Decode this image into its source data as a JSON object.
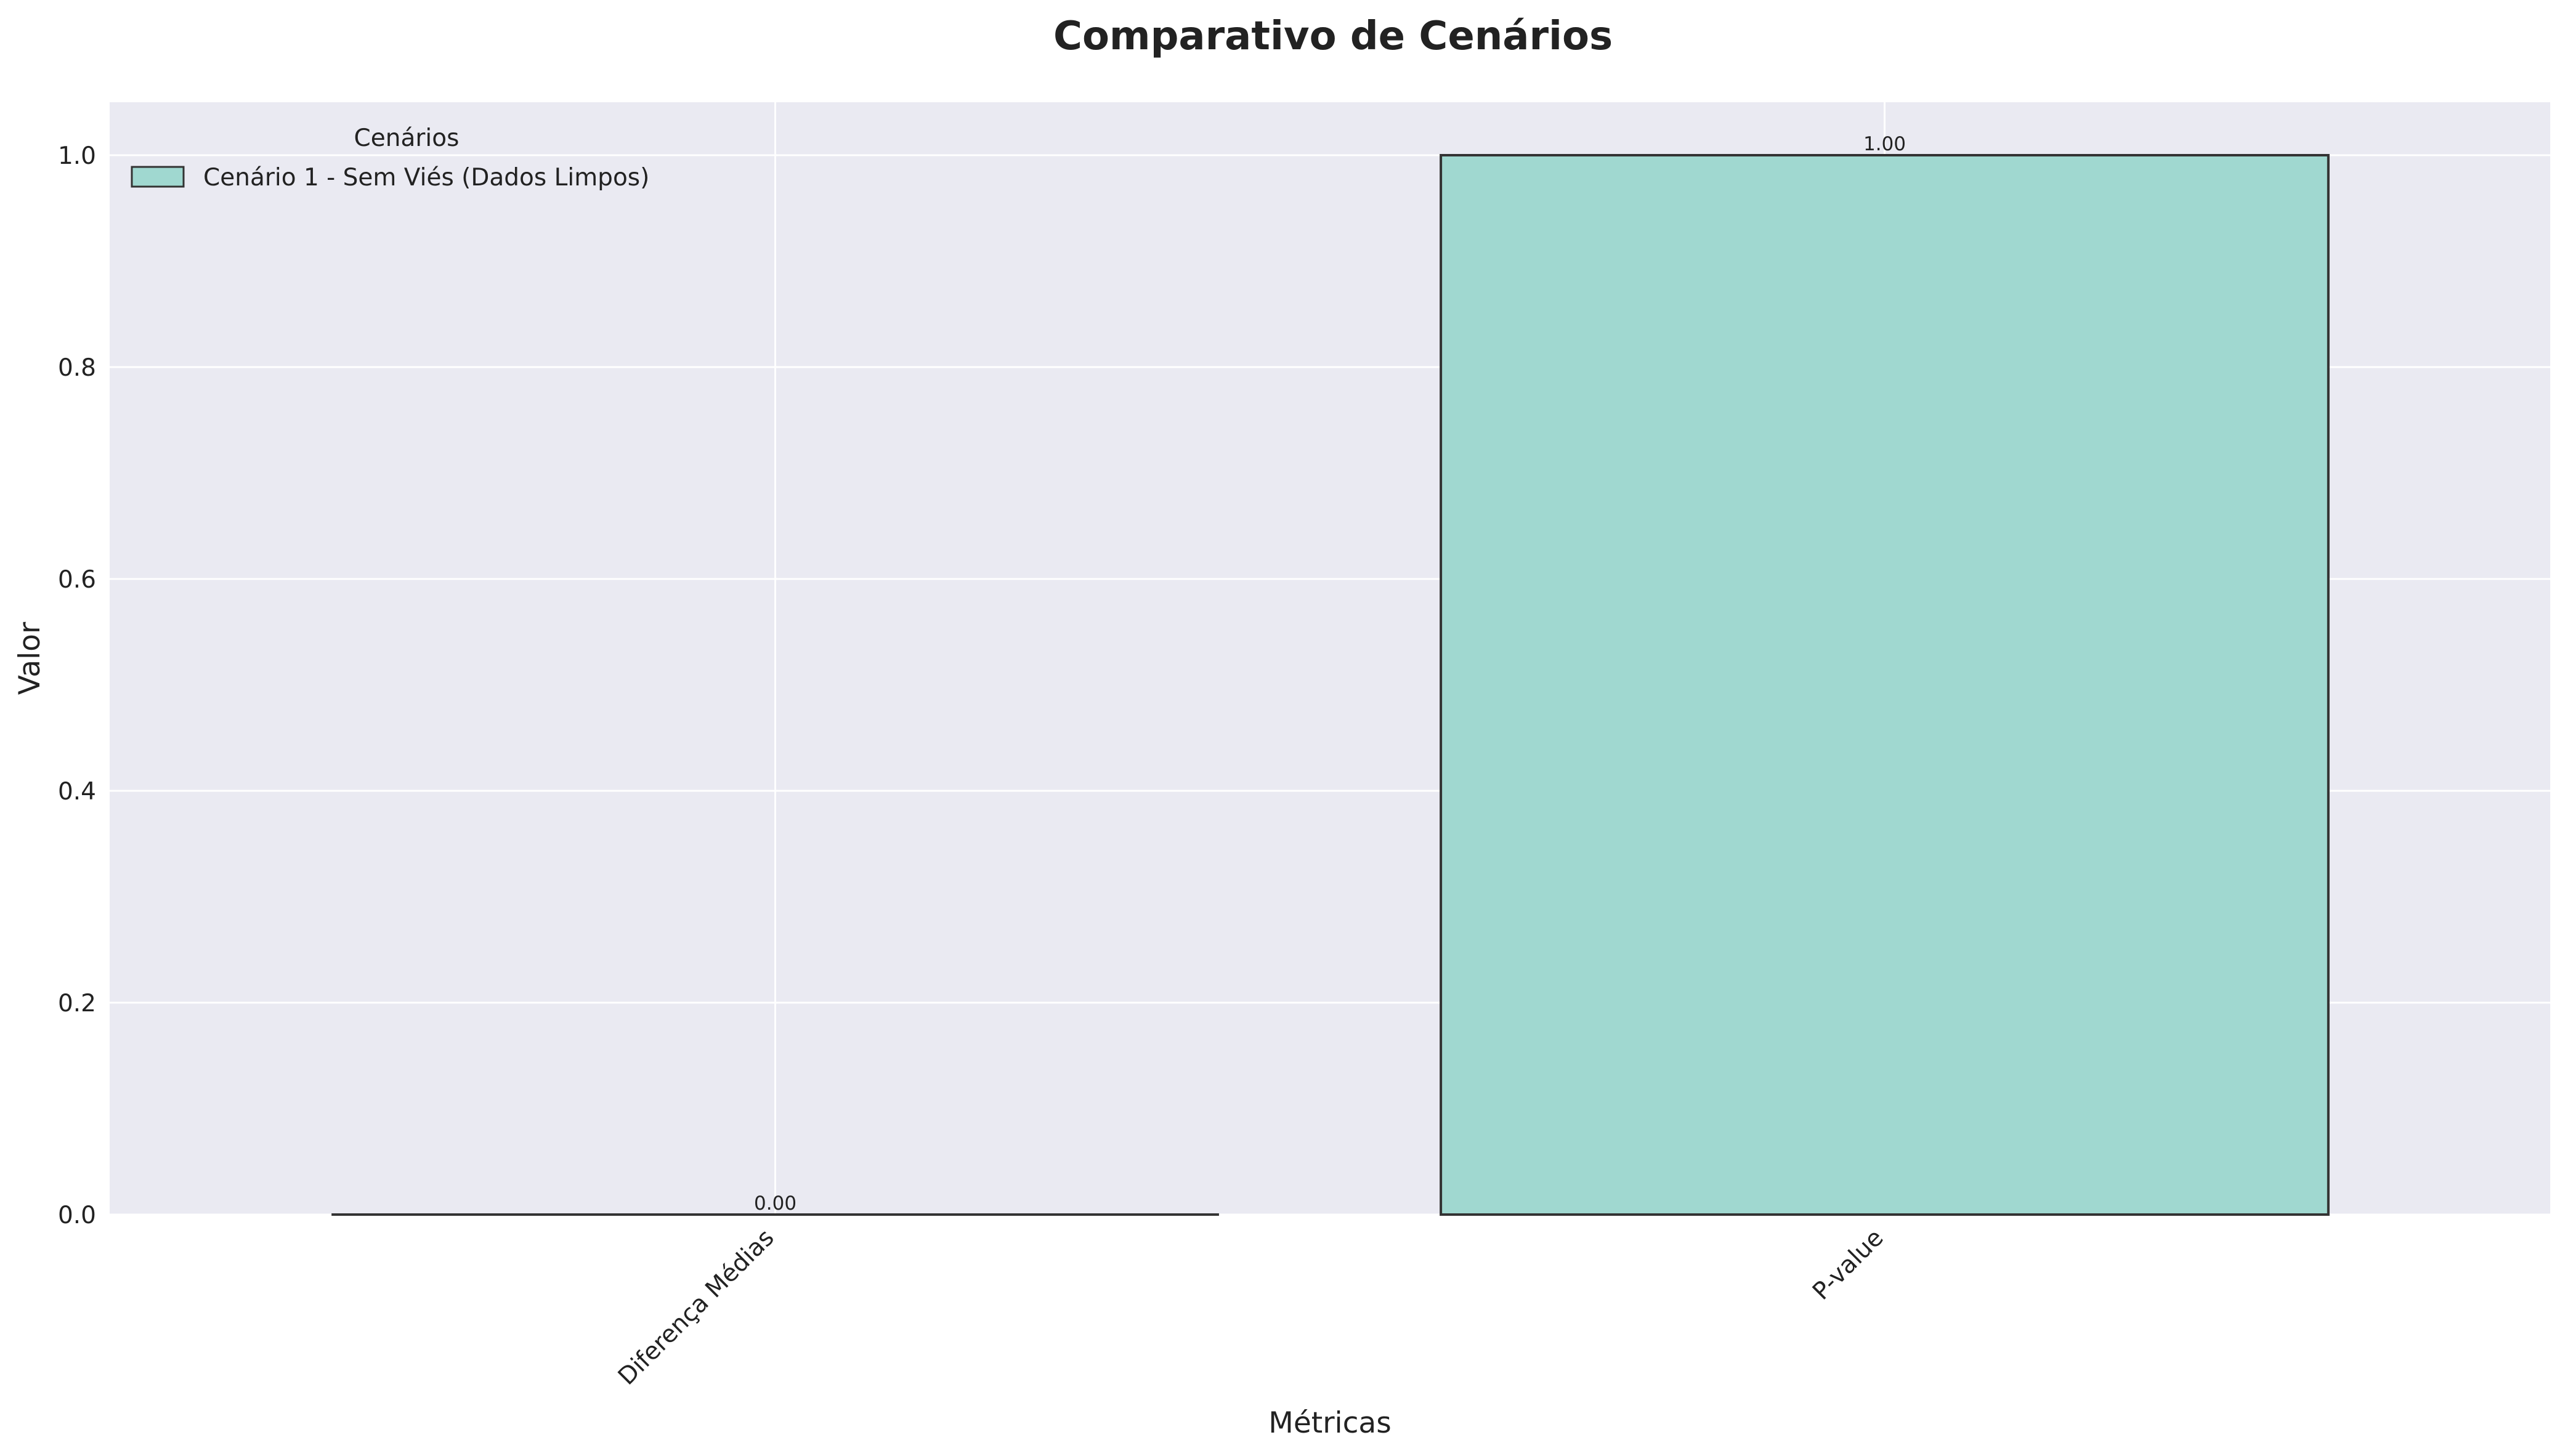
{
  "chart_data": {
    "type": "bar",
    "title": "Comparativo de Cenários",
    "xlabel": "Métricas",
    "ylabel": "Valor",
    "categories": [
      "Diferença Médias",
      "P-value"
    ],
    "series": [
      {
        "name": "Cenário 1 - Sem Viés (Dados Limpos)",
        "values": [
          0.0,
          1.0
        ],
        "data_labels": [
          "0.00",
          "1.00"
        ],
        "color": "#a0d8d0"
      }
    ],
    "ylim": [
      0.0,
      1.05
    ],
    "yticks": [
      0.0,
      0.2,
      0.4,
      0.6,
      0.8,
      1.0
    ],
    "ytick_labels": [
      "0.0",
      "0.2",
      "0.4",
      "0.6",
      "0.8",
      "1.0"
    ],
    "legend": {
      "title": "Cenários",
      "placement": "top-left"
    },
    "grid": true,
    "colors": {
      "plot_background": "#eaeaf2",
      "grid": "#ffffff",
      "bar_edge": "#333333"
    }
  }
}
